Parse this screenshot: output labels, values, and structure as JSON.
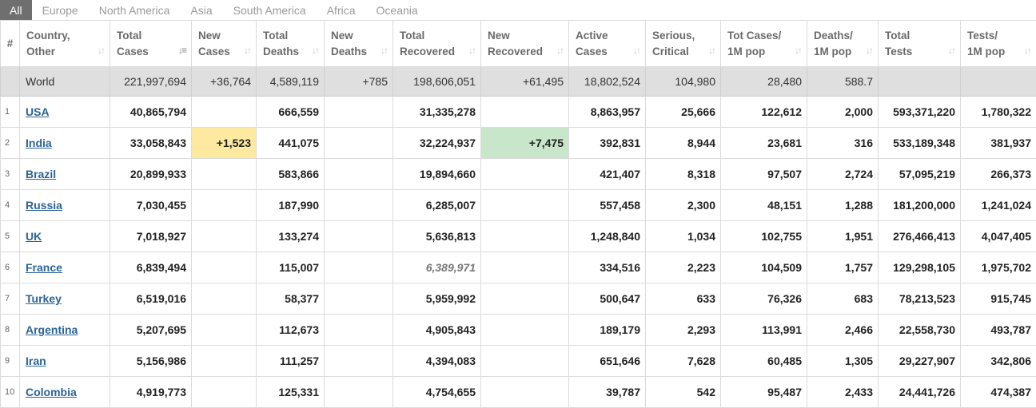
{
  "tabs": [
    "All",
    "Europe",
    "North America",
    "Asia",
    "South America",
    "Africa",
    "Oceania"
  ],
  "columns": [
    {
      "l1": "#",
      "l2": ""
    },
    {
      "l1": "Country,",
      "l2": "Other"
    },
    {
      "l1": "Total",
      "l2": "Cases"
    },
    {
      "l1": "New",
      "l2": "Cases"
    },
    {
      "l1": "Total",
      "l2": "Deaths"
    },
    {
      "l1": "New",
      "l2": "Deaths"
    },
    {
      "l1": "Total",
      "l2": "Recovered"
    },
    {
      "l1": "New",
      "l2": "Recovered"
    },
    {
      "l1": "Active",
      "l2": "Cases"
    },
    {
      "l1": "Serious,",
      "l2": "Critical"
    },
    {
      "l1": "Tot Cases/",
      "l2": "1M pop"
    },
    {
      "l1": "Deaths/",
      "l2": "1M pop"
    },
    {
      "l1": "Total",
      "l2": "Tests"
    },
    {
      "l1": "Tests/",
      "l2": "1M pop"
    }
  ],
  "world": {
    "country": "World",
    "total_cases": "221,997,694",
    "new_cases": "+36,764",
    "total_deaths": "4,589,119",
    "new_deaths": "+785",
    "total_recovered": "198,606,051",
    "new_recovered": "+61,495",
    "active": "18,802,524",
    "serious": "104,980",
    "cases_per_m": "28,480",
    "deaths_per_m": "588.7",
    "total_tests": "",
    "tests_per_m": ""
  },
  "rows": [
    {
      "num": "1",
      "country": "USA",
      "total_cases": "40,865,794",
      "new_cases": "",
      "total_deaths": "666,559",
      "new_deaths": "",
      "total_recovered": "31,335,278",
      "new_recovered": "",
      "active": "8,863,957",
      "serious": "25,666",
      "cases_per_m": "122,612",
      "deaths_per_m": "2,000",
      "total_tests": "593,371,220",
      "tests_per_m": "1,780,322"
    },
    {
      "num": "2",
      "country": "India",
      "total_cases": "33,058,843",
      "new_cases": "+1,523",
      "total_deaths": "441,075",
      "new_deaths": "",
      "total_recovered": "32,224,937",
      "new_recovered": "+7,475",
      "active": "392,831",
      "serious": "8,944",
      "cases_per_m": "23,681",
      "deaths_per_m": "316",
      "total_tests": "533,189,348",
      "tests_per_m": "381,937"
    },
    {
      "num": "3",
      "country": "Brazil",
      "total_cases": "20,899,933",
      "new_cases": "",
      "total_deaths": "583,866",
      "new_deaths": "",
      "total_recovered": "19,894,660",
      "new_recovered": "",
      "active": "421,407",
      "serious": "8,318",
      "cases_per_m": "97,507",
      "deaths_per_m": "2,724",
      "total_tests": "57,095,219",
      "tests_per_m": "266,373"
    },
    {
      "num": "4",
      "country": "Russia",
      "total_cases": "7,030,455",
      "new_cases": "",
      "total_deaths": "187,990",
      "new_deaths": "",
      "total_recovered": "6,285,007",
      "new_recovered": "",
      "active": "557,458",
      "serious": "2,300",
      "cases_per_m": "48,151",
      "deaths_per_m": "1,288",
      "total_tests": "181,200,000",
      "tests_per_m": "1,241,024"
    },
    {
      "num": "5",
      "country": "UK",
      "total_cases": "7,018,927",
      "new_cases": "",
      "total_deaths": "133,274",
      "new_deaths": "",
      "total_recovered": "5,636,813",
      "new_recovered": "",
      "active": "1,248,840",
      "serious": "1,034",
      "cases_per_m": "102,755",
      "deaths_per_m": "1,951",
      "total_tests": "276,466,413",
      "tests_per_m": "4,047,405"
    },
    {
      "num": "6",
      "country": "France",
      "total_cases": "6,839,494",
      "new_cases": "",
      "total_deaths": "115,007",
      "new_deaths": "",
      "total_recovered": "6,389,971",
      "new_recovered": "",
      "active": "334,516",
      "serious": "2,223",
      "cases_per_m": "104,509",
      "deaths_per_m": "1,757",
      "total_tests": "129,298,105",
      "tests_per_m": "1,975,702"
    },
    {
      "num": "7",
      "country": "Turkey",
      "total_cases": "6,519,016",
      "new_cases": "",
      "total_deaths": "58,377",
      "new_deaths": "",
      "total_recovered": "5,959,992",
      "new_recovered": "",
      "active": "500,647",
      "serious": "633",
      "cases_per_m": "76,326",
      "deaths_per_m": "683",
      "total_tests": "78,213,523",
      "tests_per_m": "915,745"
    },
    {
      "num": "8",
      "country": "Argentina",
      "total_cases": "5,207,695",
      "new_cases": "",
      "total_deaths": "112,673",
      "new_deaths": "",
      "total_recovered": "4,905,843",
      "new_recovered": "",
      "active": "189,179",
      "serious": "2,293",
      "cases_per_m": "113,991",
      "deaths_per_m": "2,466",
      "total_tests": "22,558,730",
      "tests_per_m": "493,787"
    },
    {
      "num": "9",
      "country": "Iran",
      "total_cases": "5,156,986",
      "new_cases": "",
      "total_deaths": "111,257",
      "new_deaths": "",
      "total_recovered": "4,394,083",
      "new_recovered": "",
      "active": "651,646",
      "serious": "7,628",
      "cases_per_m": "60,485",
      "deaths_per_m": "1,305",
      "total_tests": "29,227,907",
      "tests_per_m": "342,806"
    },
    {
      "num": "10",
      "country": "Colombia",
      "total_cases": "4,919,773",
      "new_cases": "",
      "total_deaths": "125,331",
      "new_deaths": "",
      "total_recovered": "4,754,655",
      "new_recovered": "",
      "active": "39,787",
      "serious": "542",
      "cases_per_m": "95,487",
      "deaths_per_m": "2,433",
      "total_tests": "24,441,726",
      "tests_per_m": "474,387"
    }
  ],
  "sort_icon": "sort-arrows-icon",
  "colors": {
    "active_tab": "#6f6f6f",
    "world_row": "#dfdfdf",
    "new_cases_highlight": "#fdeaa0",
    "new_recovered_highlight": "#c8e6c9",
    "link": "#2a6496"
  }
}
